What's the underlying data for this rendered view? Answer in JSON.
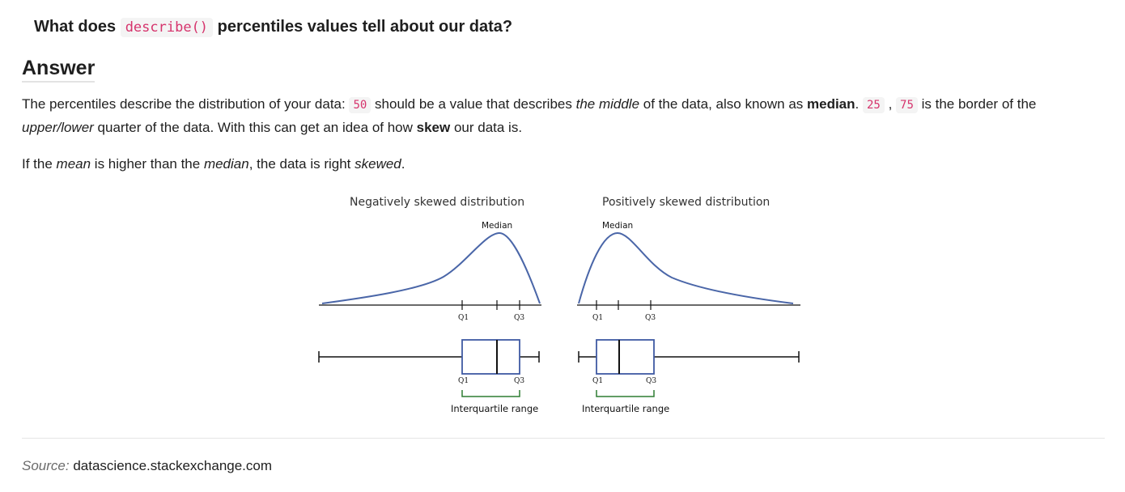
{
  "question": {
    "prefix": "What does",
    "code": "describe()",
    "suffix": "percentiles values tell about our data?"
  },
  "answer": {
    "heading": "Answer",
    "para1": {
      "t1": "The percentiles describe the distribution of your data: ",
      "c50": "50",
      "t2": " should be a value that describes ",
      "em_middle": "the middle",
      "t3": " of the data, also known as ",
      "strong_median": "median",
      "t4": ". ",
      "c25": "25",
      "t5": " , ",
      "c75": "75",
      "t6": " is the border of the ",
      "em_upper": "upper/lower",
      "t7": " quarter of the data. With this can get an idea of how ",
      "strong_skew": "skew",
      "t8": " our data is."
    },
    "para2": {
      "t1": "If the ",
      "em_mean": "mean",
      "t2": " is higher than the ",
      "em_median": "median",
      "t3": ", the data is right ",
      "em_skewed": "skewed",
      "t4": "."
    }
  },
  "figure": {
    "left_title": "Negatively skewed distribution",
    "right_title": "Positively skewed distribution",
    "median_label": "Median",
    "q1_label": "Q1",
    "q3_label": "Q3",
    "iqr_label": "Interquartile range",
    "colors": {
      "curve": "#4a66a8",
      "box": "#3f5aa3",
      "bracket": "#2e7d32",
      "axis": "#111111"
    }
  },
  "source": {
    "label": "Source:",
    "value": "datascience.stackexchange.com"
  }
}
